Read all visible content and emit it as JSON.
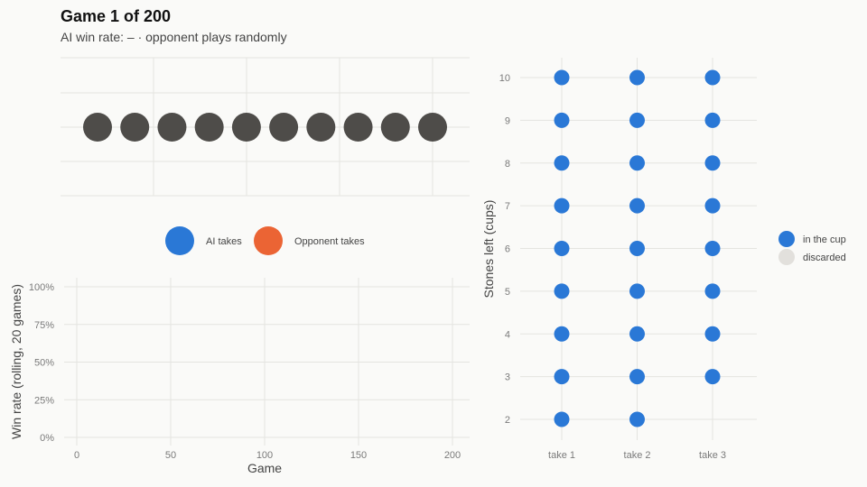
{
  "header": {
    "title": "Game 1 of 200",
    "subtitle": "AI win rate: –  ·  opponent plays randomly"
  },
  "colors": {
    "stone": "#4e4c49",
    "ai": "#2a78d6",
    "opponent": "#eb6434",
    "discarded": "#e2e0dc",
    "grid": "#e4e4e0"
  },
  "chart_data": [
    {
      "type": "scatter",
      "name": "stone-row",
      "title": "",
      "stones": 10,
      "stone_state": [
        "remaining",
        "remaining",
        "remaining",
        "remaining",
        "remaining",
        "remaining",
        "remaining",
        "remaining",
        "remaining",
        "remaining"
      ],
      "legend": {
        "placement": "bottom",
        "items": [
          {
            "label": "AI takes",
            "color": "#2a78d6"
          },
          {
            "label": "Opponent takes",
            "color": "#eb6434"
          }
        ]
      },
      "grid": true
    },
    {
      "type": "line",
      "name": "win-rate",
      "title": "",
      "xlabel": "Game",
      "ylabel": "Win rate (rolling, 20 games)",
      "xlim": [
        0,
        200
      ],
      "ylim": [
        0,
        1
      ],
      "x_ticks": [
        "0",
        "50",
        "100",
        "150",
        "200"
      ],
      "y_ticks": [
        "0%",
        "25%",
        "50%",
        "75%",
        "100%"
      ],
      "series": [],
      "grid": true
    },
    {
      "type": "scatter",
      "name": "strategy-cups",
      "title": "",
      "xlabel": "",
      "ylabel": "Stones left (cups)",
      "categories": [
        "take 1",
        "take 2",
        "take 3"
      ],
      "y_values": [
        2,
        3,
        4,
        5,
        6,
        7,
        8,
        9,
        10
      ],
      "y_ticks": [
        "2",
        "3",
        "4",
        "5",
        "6",
        "7",
        "8",
        "9",
        "10"
      ],
      "cups": [
        {
          "category": "take 1",
          "stones_left": [
            2,
            3,
            4,
            5,
            6,
            7,
            8,
            9,
            10
          ],
          "state": "in the cup"
        },
        {
          "category": "take 2",
          "stones_left": [
            2,
            3,
            4,
            5,
            6,
            7,
            8,
            9,
            10
          ],
          "state": "in the cup"
        },
        {
          "category": "take 3",
          "stones_left": [
            3,
            4,
            5,
            6,
            7,
            8,
            9,
            10
          ],
          "state": "in the cup"
        }
      ],
      "legend": {
        "placement": "right",
        "items": [
          {
            "label": "in the cup",
            "color": "#2a78d6"
          },
          {
            "label": "discarded",
            "color": "#e2e0dc"
          }
        ]
      },
      "grid": true
    }
  ]
}
